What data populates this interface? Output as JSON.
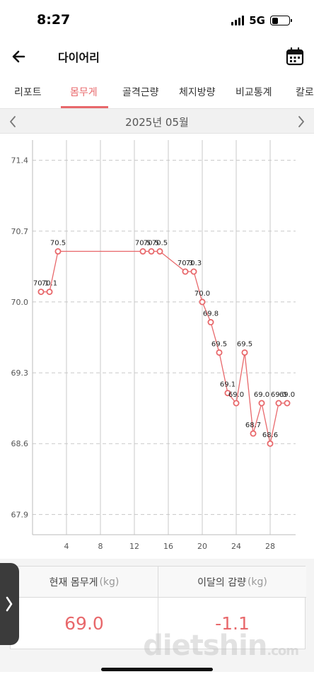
{
  "status_bar": {
    "time": "8:27",
    "network": "5G",
    "battery_level": 0.35
  },
  "header": {
    "title": "다이어리",
    "back_icon": "arrow-left-icon",
    "calendar_icon": "calendar-icon"
  },
  "tabs": [
    {
      "label": "리포트",
      "active": false
    },
    {
      "label": "몸무게",
      "active": true
    },
    {
      "label": "골격근량",
      "active": false
    },
    {
      "label": "체지방량",
      "active": false
    },
    {
      "label": "비교통계",
      "active": false
    },
    {
      "label": "칼로",
      "active": false
    }
  ],
  "month_nav": {
    "label": "2025년 05월",
    "prev_icon": "chevron-left-icon",
    "next_icon": "chevron-right-icon"
  },
  "colors": {
    "accent": "#e8686b",
    "line": "#e8686b",
    "grid": "#c8c8c8"
  },
  "chart_data": {
    "type": "line",
    "x_ticks": [
      4,
      8,
      12,
      16,
      20,
      24,
      28
    ],
    "y_ticks": [
      "71.4",
      "70.7",
      "70.0",
      "69.3",
      "68.6",
      "67.9"
    ],
    "xlim": [
      0,
      31
    ],
    "ylim": [
      67.7,
      71.6
    ],
    "grid": true,
    "points": [
      {
        "x": 1,
        "y": 70.1,
        "label": "70.1"
      },
      {
        "x": 2,
        "y": 70.1,
        "label": "70.1"
      },
      {
        "x": 3,
        "y": 70.5,
        "label": "70.5"
      },
      {
        "x": 13,
        "y": 70.5,
        "label": "70.5"
      },
      {
        "x": 14,
        "y": 70.5,
        "label": "70.5"
      },
      {
        "x": 15,
        "y": 70.5,
        "label": "70.5"
      },
      {
        "x": 18,
        "y": 70.3,
        "label": "70.3"
      },
      {
        "x": 19,
        "y": 70.3,
        "label": "70.3"
      },
      {
        "x": 20,
        "y": 70.0,
        "label": "70.0"
      },
      {
        "x": 21,
        "y": 69.8,
        "label": "69.8"
      },
      {
        "x": 22,
        "y": 69.5,
        "label": "69.5"
      },
      {
        "x": 23,
        "y": 69.1,
        "label": "69.1"
      },
      {
        "x": 24,
        "y": 69.0,
        "label": "69.0"
      },
      {
        "x": 25,
        "y": 69.5,
        "label": "69.5"
      },
      {
        "x": 26,
        "y": 68.7,
        "label": "68.7"
      },
      {
        "x": 27,
        "y": 69.0,
        "label": "69.0"
      },
      {
        "x": 28,
        "y": 68.6,
        "label": "68.6"
      },
      {
        "x": 29,
        "y": 69.0,
        "label": "69.0"
      },
      {
        "x": 30,
        "y": 69.0,
        "label": "69.0"
      }
    ]
  },
  "summary": {
    "current_label": "현재 몸무게",
    "current_unit": "(kg)",
    "current_value": "69.0",
    "change_label": "이달의 감량",
    "change_unit": "(kg)",
    "change_value": "-1.1"
  },
  "side_handle_icon": "chevron-right-icon",
  "watermark": {
    "main": "dietshin",
    "suffix": ".com"
  }
}
